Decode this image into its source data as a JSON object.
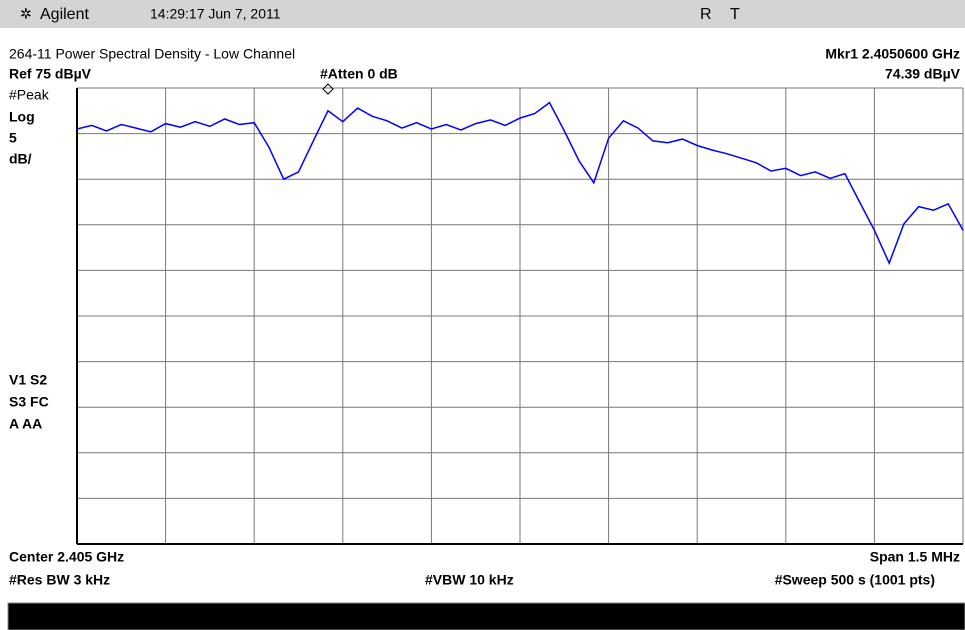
{
  "chart_data": {
    "type": "line",
    "title": "264-11 Power Spectral Density - Low Channel",
    "header": {
      "brand": "Agilent",
      "datetime": "14:29:17  Jun 7, 2011",
      "status_r": "R",
      "status_t": "T"
    },
    "annotations": {
      "marker_freq": "Mkr1  2.4050600 GHz",
      "marker_level": "74.39 dBµV",
      "ref": "Ref 75 dBµV",
      "atten": "#Atten 0 dB",
      "detector": "#Peak",
      "scale_type": "Log",
      "scale_value": "5",
      "scale_unit": "dB/",
      "flags_1": "V1  S2",
      "flags_2": "S3  FC",
      "flags_3": "A   AA",
      "center": "Center 2.405 GHz",
      "span": "Span 1.5 MHz",
      "rbw": "#Res BW 3 kHz",
      "vbw": "#VBW 10 kHz",
      "sweep": "#Sweep 500 s (1001 pts)"
    },
    "xlim": [
      2.40425,
      2.40575
    ],
    "ylim": [
      25,
      75
    ],
    "grid": true,
    "x": [
      2.40425,
      2.404275,
      2.4043,
      2.404325,
      2.40435,
      2.404375,
      2.4044,
      2.404425,
      2.40445,
      2.404475,
      2.4045,
      2.404525,
      2.40455,
      2.404575,
      2.4046,
      2.404625,
      2.40465,
      2.404675,
      2.4047,
      2.404725,
      2.40475,
      2.404775,
      2.4048,
      2.404825,
      2.40485,
      2.404875,
      2.4049,
      2.404925,
      2.40495,
      2.404975,
      2.405,
      2.405025,
      2.40505,
      2.405075,
      2.4051,
      2.405125,
      2.40515,
      2.405175,
      2.4052,
      2.405225,
      2.40525,
      2.405275,
      2.4053,
      2.405325,
      2.40535,
      2.405375,
      2.4054,
      2.405425,
      2.40545,
      2.405475,
      2.4055,
      2.405525,
      2.40555,
      2.405575,
      2.4056,
      2.405625,
      2.40565,
      2.405675,
      2.4057,
      2.405725,
      2.40575
    ],
    "series": [
      {
        "name": "Trace 1",
        "color": "#0000ff",
        "values": [
          70.5,
          70.9,
          70.3,
          71.0,
          70.6,
          70.2,
          71.1,
          70.7,
          71.3,
          70.8,
          71.6,
          71.0,
          71.2,
          68.5,
          65.0,
          65.8,
          69.2,
          72.5,
          71.3,
          72.8,
          71.9,
          71.4,
          70.6,
          71.2,
          70.5,
          71.0,
          70.4,
          71.1,
          71.5,
          70.9,
          71.7,
          72.2,
          73.4,
          70.3,
          67.0,
          64.6,
          69.5,
          71.4,
          70.6,
          69.2,
          69.0,
          69.4,
          68.7,
          68.2,
          67.8,
          67.3,
          66.8,
          65.9,
          66.2,
          65.4,
          65.8,
          65.1,
          65.6,
          62.5,
          59.4,
          55.8,
          60.1,
          62.0,
          61.6,
          62.3,
          59.4
        ]
      }
    ]
  }
}
